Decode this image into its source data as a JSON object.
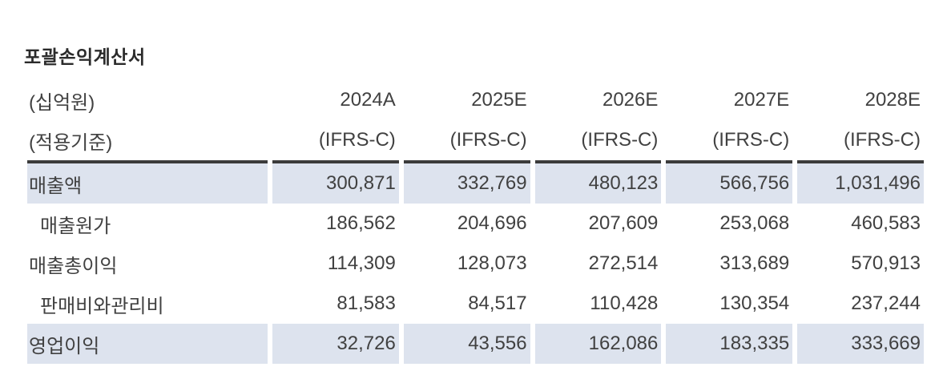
{
  "table": {
    "title": "포괄손익계산서",
    "unit_label": "(십억원)",
    "basis_label": "(적용기준)",
    "columns": [
      "2024A",
      "2025E",
      "2026E",
      "2027E",
      "2028E"
    ],
    "basis_values": [
      "(IFRS-C)",
      "(IFRS-C)",
      "(IFRS-C)",
      "(IFRS-C)",
      "(IFRS-C)"
    ],
    "rows": [
      {
        "label": "매출액",
        "values": [
          "300,871",
          "332,769",
          "480,123",
          "566,756",
          "1,031,496"
        ]
      },
      {
        "label": "매출원가",
        "values": [
          "186,562",
          "204,696",
          "207,609",
          "253,068",
          "460,583"
        ]
      },
      {
        "label": "매출총이익",
        "values": [
          "114,309",
          "128,073",
          "272,514",
          "313,689",
          "570,913"
        ]
      },
      {
        "label": "판매비와관리비",
        "values": [
          "81,583",
          "84,517",
          "110,428",
          "130,354",
          "237,244"
        ]
      },
      {
        "label": "영업이익",
        "values": [
          "32,726",
          "43,556",
          "162,086",
          "183,335",
          "333,669"
        ]
      }
    ]
  },
  "colors": {
    "highlight_row": "#dde3ee",
    "header_border": "#3b3b3b",
    "text": "#414141"
  }
}
